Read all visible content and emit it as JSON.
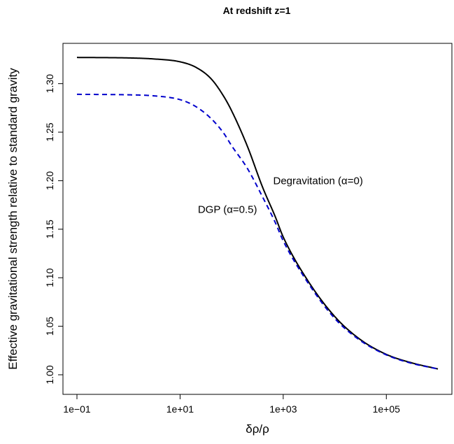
{
  "chart_data": {
    "type": "line",
    "title": "At redshift z=1",
    "xlabel": "δρ/ρ",
    "ylabel": "Effective gravitational strength relative to standard gravity",
    "x_scale": "log10",
    "xlim": [
      0.1,
      1000000
    ],
    "ylim": [
      1.0,
      1.33
    ],
    "x_ticks": [
      {
        "value": 0.1,
        "label": "1e−01"
      },
      {
        "value": 10,
        "label": "1e+01"
      },
      {
        "value": 1000,
        "label": "1e+03"
      },
      {
        "value": 100000,
        "label": "1e+05"
      }
    ],
    "y_ticks": [
      {
        "value": 1.0,
        "label": "1.00"
      },
      {
        "value": 1.05,
        "label": "1.05"
      },
      {
        "value": 1.1,
        "label": "1.10"
      },
      {
        "value": 1.15,
        "label": "1.15"
      },
      {
        "value": 1.2,
        "label": "1.20"
      },
      {
        "value": 1.25,
        "label": "1.25"
      },
      {
        "value": 1.3,
        "label": "1.30"
      }
    ],
    "grid": false,
    "series": [
      {
        "name": "Degravitation (α=0)",
        "color": "#000000",
        "dash": "solid",
        "x": [
          0.1,
          1,
          3,
          10,
          20,
          40,
          70,
          100,
          200,
          400,
          700,
          1000,
          3000,
          10000,
          30000,
          100000,
          300000,
          1000000
        ],
        "y": [
          1.327,
          1.3265,
          1.3255,
          1.3225,
          1.317,
          1.305,
          1.287,
          1.272,
          1.236,
          1.193,
          1.163,
          1.142,
          1.097,
          1.06,
          1.037,
          1.021,
          1.0125,
          1.006
        ]
      },
      {
        "name": "DGP (α=0.5)",
        "color": "#0000cc",
        "dash": "dashed",
        "x": [
          0.1,
          1,
          3,
          10,
          20,
          40,
          70,
          100,
          200,
          400,
          700,
          1000,
          3000,
          10000,
          30000,
          100000,
          300000,
          1000000
        ],
        "y": [
          1.289,
          1.2885,
          1.2875,
          1.2835,
          1.2765,
          1.264,
          1.249,
          1.236,
          1.213,
          1.183,
          1.157,
          1.138,
          1.095,
          1.058,
          1.036,
          1.0205,
          1.012,
          1.006
        ]
      }
    ],
    "annotations": [
      {
        "text": "Degravitation (α=0)",
        "x": 600,
        "y": 1.2,
        "color": "#000000",
        "anchor": "start"
      },
      {
        "text": "DGP (α=0.5)",
        "x": 400,
        "y": 1.1705,
        "color": "#0000cc",
        "anchor": "end"
      }
    ]
  }
}
